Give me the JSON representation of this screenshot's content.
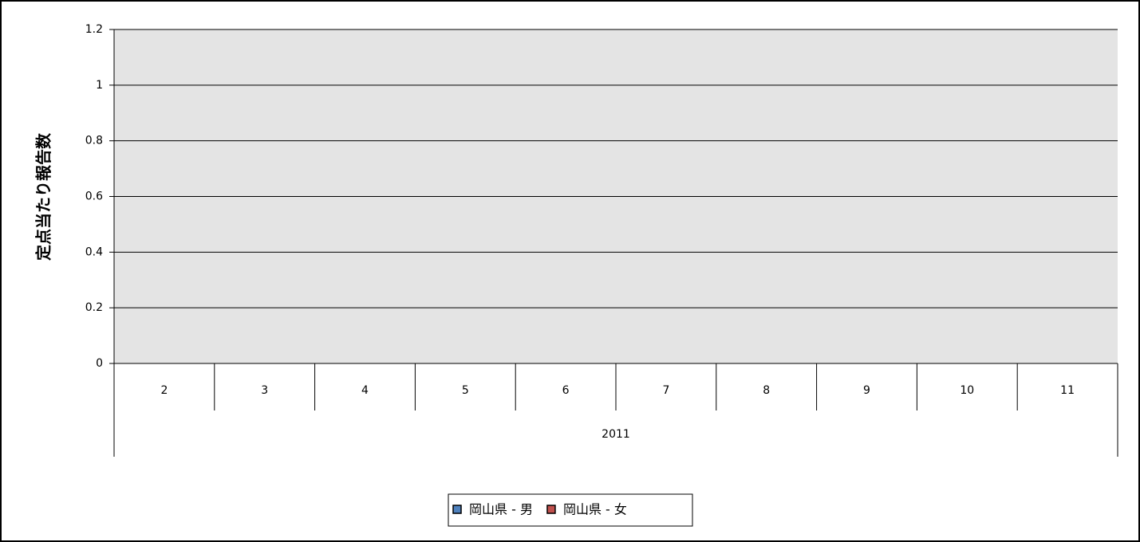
{
  "chart_data": {
    "type": "bar",
    "y_axis_label": "定点当たり報告数",
    "categories": [
      "2",
      "3",
      "4",
      "5",
      "6",
      "7",
      "8",
      "9",
      "10",
      "11"
    ],
    "category_group": "2011",
    "series": [
      {
        "name": "岡山県 - 男",
        "color": "#4f81bd",
        "values": [
          0,
          0,
          0,
          0,
          0,
          0,
          0,
          0,
          0,
          0
        ]
      },
      {
        "name": "岡山県 - 女",
        "color": "#c0504d",
        "values": [
          0,
          0,
          0,
          0,
          0,
          0,
          0,
          0,
          0,
          0
        ]
      }
    ],
    "ylim": [
      0,
      1.2
    ],
    "yticks": [
      0,
      0.2,
      0.4,
      0.6,
      0.8,
      1,
      1.2
    ],
    "grid": true,
    "legend": "bottom"
  }
}
